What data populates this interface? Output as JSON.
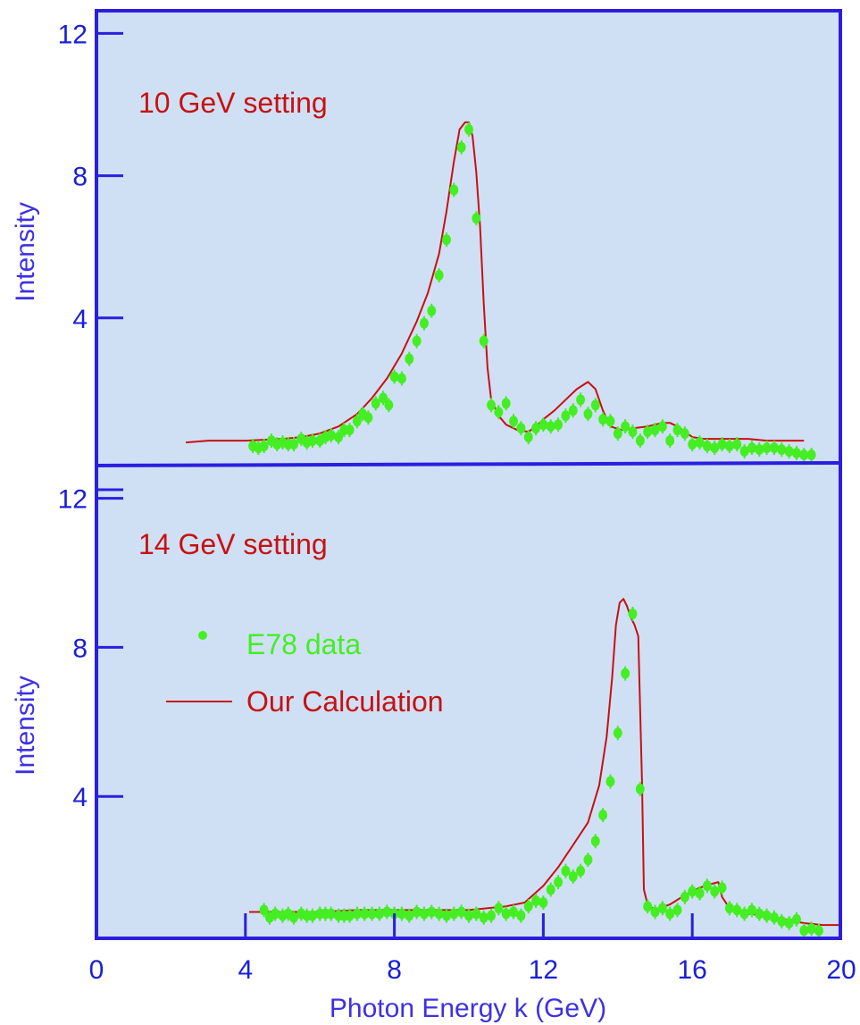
{
  "chart_data": [
    {
      "type": "scatter",
      "panel": "top",
      "annotation": "10 GeV setting",
      "ylabel": "Intensity",
      "xlim": [
        0,
        20
      ],
      "ylim": [
        0,
        12
      ],
      "yticks": [
        "4",
        "8",
        "12"
      ],
      "series": [
        {
          "name": "E78 data",
          "kind": "points",
          "x": [
            4.2,
            4.35,
            4.5,
            4.7,
            4.85,
            5.0,
            5.15,
            5.3,
            5.5,
            5.65,
            5.8,
            6.0,
            6.15,
            6.3,
            6.5,
            6.65,
            6.8,
            7.0,
            7.15,
            7.3,
            7.5,
            7.7,
            7.85,
            8.0,
            8.2,
            8.4,
            8.6,
            8.8,
            9.0,
            9.2,
            9.4,
            9.6,
            9.8,
            10.0,
            10.2,
            10.4,
            10.6,
            10.8,
            11.0,
            11.2,
            11.4,
            11.6,
            11.8,
            12.0,
            12.2,
            12.4,
            12.6,
            12.8,
            13.0,
            13.2,
            13.4,
            13.6,
            13.8,
            14.0,
            14.2,
            14.4,
            14.6,
            14.8,
            15.0,
            15.2,
            15.4,
            15.6,
            15.8,
            16.0,
            16.2,
            16.4,
            16.6,
            16.8,
            17.0,
            17.2,
            17.4,
            17.6,
            17.8,
            18.0,
            18.2,
            18.4,
            18.6,
            18.8,
            19.0,
            19.2
          ],
          "y": [
            0.4,
            0.35,
            0.4,
            0.55,
            0.45,
            0.5,
            0.45,
            0.45,
            0.6,
            0.5,
            0.55,
            0.55,
            0.65,
            0.7,
            0.65,
            0.85,
            0.85,
            1.1,
            1.3,
            1.2,
            1.6,
            1.75,
            1.55,
            2.35,
            2.3,
            2.85,
            3.35,
            3.85,
            4.2,
            5.2,
            6.2,
            7.6,
            8.8,
            9.3,
            6.8,
            3.35,
            1.55,
            1.35,
            1.6,
            1.1,
            0.9,
            0.65,
            0.9,
            1.0,
            0.95,
            1.0,
            1.25,
            1.4,
            1.7,
            1.3,
            1.55,
            1.15,
            1.1,
            0.75,
            0.95,
            0.8,
            0.55,
            0.8,
            0.85,
            0.95,
            0.55,
            0.85,
            0.75,
            0.45,
            0.5,
            0.4,
            0.35,
            0.45,
            0.4,
            0.45,
            0.25,
            0.35,
            0.3,
            0.35,
            0.35,
            0.3,
            0.25,
            0.2,
            0.15,
            0.15
          ]
        },
        {
          "name": "Our Calculation",
          "kind": "line",
          "x": [
            2.4,
            3.0,
            4.0,
            5.0,
            5.5,
            6.0,
            6.5,
            7.0,
            7.4,
            7.8,
            8.2,
            8.6,
            8.9,
            9.2,
            9.4,
            9.6,
            9.75,
            9.9,
            10.0,
            10.1,
            10.2,
            10.3,
            10.4,
            10.5,
            10.6,
            10.8,
            11.0,
            11.3,
            11.6,
            11.8,
            12.0,
            12.3,
            12.6,
            12.9,
            13.2,
            13.4,
            13.6,
            13.8,
            13.95,
            14.1,
            14.4,
            14.8,
            15.2,
            15.4,
            15.6,
            15.8,
            16.0,
            16.3,
            16.6,
            17.0,
            17.5,
            18.0,
            18.5,
            19.0
          ],
          "y": [
            0.5,
            0.55,
            0.55,
            0.6,
            0.65,
            0.75,
            0.95,
            1.3,
            1.75,
            2.3,
            3.0,
            3.9,
            4.7,
            5.8,
            7.0,
            8.4,
            9.3,
            9.5,
            9.5,
            9.1,
            8.1,
            6.6,
            4.4,
            2.6,
            1.7,
            1.25,
            1.0,
            0.85,
            0.8,
            0.95,
            1.15,
            1.4,
            1.7,
            2.0,
            2.2,
            2.0,
            1.4,
            0.95,
            0.9,
            0.85,
            0.9,
            0.95,
            1.05,
            1.05,
            0.95,
            0.8,
            0.65,
            0.6,
            0.6,
            0.6,
            0.6,
            0.55,
            0.55,
            0.55
          ]
        }
      ]
    },
    {
      "type": "scatter",
      "panel": "bottom",
      "annotation": "14 GeV setting",
      "xlabel": "Photon Energy k (GeV)",
      "ylabel": "Intensity",
      "xlim": [
        0,
        20
      ],
      "ylim": [
        0,
        12
      ],
      "xticks": [
        "0",
        "4",
        "8",
        "12",
        "16",
        "20"
      ],
      "yticks": [
        "4",
        "8",
        "12"
      ],
      "legend": {
        "placement": "left-middle",
        "entries": [
          "E78 data",
          "Our Calculation"
        ]
      },
      "series": [
        {
          "name": "E78 data",
          "kind": "points",
          "x": [
            4.5,
            4.65,
            4.8,
            5.0,
            5.15,
            5.3,
            5.5,
            5.65,
            5.8,
            6.0,
            6.15,
            6.3,
            6.5,
            6.65,
            6.8,
            7.0,
            7.2,
            7.4,
            7.6,
            7.8,
            8.0,
            8.2,
            8.4,
            8.6,
            8.8,
            9.0,
            9.2,
            9.4,
            9.6,
            9.8,
            10.0,
            10.2,
            10.4,
            10.6,
            10.8,
            11.0,
            11.2,
            11.4,
            11.6,
            11.8,
            12.0,
            12.2,
            12.4,
            12.6,
            12.8,
            13.0,
            13.2,
            13.4,
            13.6,
            13.8,
            14.0,
            14.2,
            14.4,
            14.6,
            14.8,
            15.0,
            15.2,
            15.4,
            15.6,
            15.8,
            16.0,
            16.2,
            16.4,
            16.6,
            16.8,
            17.0,
            17.2,
            17.4,
            17.6,
            17.8,
            18.0,
            18.2,
            18.4,
            18.6,
            18.8,
            19.0,
            19.2,
            19.4
          ],
          "y": [
            0.95,
            0.75,
            0.85,
            0.8,
            0.85,
            0.75,
            0.85,
            0.8,
            0.8,
            0.85,
            0.85,
            0.85,
            0.8,
            0.8,
            0.8,
            0.85,
            0.85,
            0.85,
            0.85,
            0.9,
            0.85,
            0.85,
            0.8,
            0.9,
            0.85,
            0.9,
            0.85,
            0.8,
            0.85,
            0.9,
            0.8,
            0.85,
            0.75,
            0.8,
            1.0,
            0.85,
            0.9,
            0.8,
            1.05,
            1.2,
            1.15,
            1.5,
            1.7,
            2.0,
            1.85,
            2.0,
            2.3,
            2.8,
            3.5,
            4.4,
            5.7,
            7.3,
            8.9,
            4.2,
            1.05,
            0.9,
            1.0,
            0.85,
            0.95,
            1.3,
            1.45,
            1.4,
            1.6,
            1.45,
            1.55,
            1.0,
            0.95,
            0.85,
            0.95,
            0.85,
            0.8,
            0.75,
            0.65,
            0.6,
            0.7,
            0.4,
            0.45,
            0.4
          ]
        },
        {
          "name": "Our Calculation",
          "kind": "line",
          "x": [
            4.1,
            5.0,
            6.0,
            7.0,
            8.0,
            9.0,
            10.0,
            11.0,
            11.5,
            12.0,
            12.4,
            12.8,
            13.2,
            13.5,
            13.7,
            13.85,
            13.95,
            14.05,
            14.15,
            14.25,
            14.35,
            14.45,
            14.55,
            14.65,
            14.7,
            14.8,
            15.0,
            15.4,
            15.8,
            16.2,
            16.5,
            16.7,
            16.8,
            17.0,
            17.5,
            18.0,
            18.5,
            19.0,
            19.5,
            20.0
          ],
          "y": [
            0.9,
            0.9,
            0.9,
            0.95,
            0.95,
            0.95,
            0.95,
            1.05,
            1.15,
            1.6,
            2.1,
            2.7,
            3.3,
            4.3,
            5.6,
            7.2,
            8.6,
            9.2,
            9.3,
            9.1,
            8.8,
            8.6,
            8.3,
            4.4,
            1.5,
            1.1,
            0.95,
            1.1,
            1.35,
            1.55,
            1.65,
            1.7,
            1.3,
            1.0,
            0.85,
            0.8,
            0.7,
            0.6,
            0.55,
            0.55
          ]
        }
      ]
    }
  ]
}
